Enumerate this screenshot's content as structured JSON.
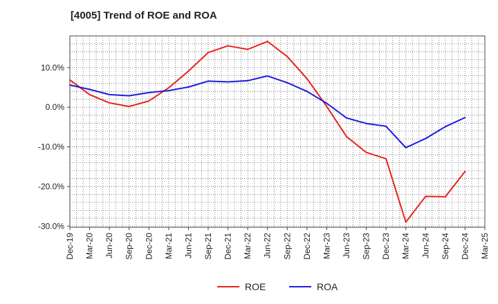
{
  "chart_data": {
    "type": "line",
    "title": "[4005]  Trend of ROE and ROA",
    "xlabel": "",
    "ylabel": "",
    "categories": [
      "Dec-19",
      "Mar-20",
      "Jun-20",
      "Sep-20",
      "Dec-20",
      "Mar-21",
      "Jun-21",
      "Sep-21",
      "Dec-21",
      "Mar-22",
      "Jun-22",
      "Sep-22",
      "Dec-22",
      "Mar-23",
      "Jun-23",
      "Sep-23",
      "Dec-23",
      "Mar-24",
      "Jun-24",
      "Sep-24",
      "Dec-24",
      "Mar-25"
    ],
    "y_tick_labels": [
      "10.0%",
      "0.0%",
      "-10.0%",
      "-20.0%",
      "-30.0%"
    ],
    "y_tick_values": [
      10,
      0,
      -10,
      -20,
      -30
    ],
    "ylim": [
      -30.3,
      18
    ],
    "grid": true,
    "legend_position": "bottom-center",
    "series": [
      {
        "name": "ROE",
        "color": "#e8211c",
        "values": [
          6.9,
          3.2,
          1.1,
          0.2,
          1.6,
          4.9,
          9.1,
          13.8,
          15.5,
          14.6,
          16.6,
          12.8,
          7.2,
          0.2,
          -7.4,
          -11.4,
          -13.0,
          -29.0,
          -22.5,
          -22.6,
          -16.2,
          null
        ]
      },
      {
        "name": "ROA",
        "color": "#1c1ce0",
        "values": [
          5.6,
          4.5,
          3.2,
          2.9,
          3.7,
          4.2,
          5.1,
          6.6,
          6.4,
          6.7,
          7.9,
          6.2,
          4.0,
          1.0,
          -2.7,
          -4.1,
          -4.8,
          -10.2,
          -7.9,
          -4.9,
          -2.6,
          null
        ]
      }
    ]
  }
}
